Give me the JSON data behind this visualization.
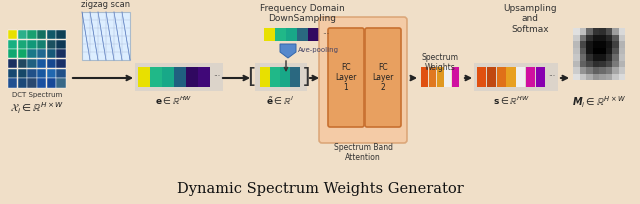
{
  "bg_color": "#f0dfc8",
  "title": "Dynamic Spectrum Weights Generator",
  "title_fontsize": 10.5,
  "dct_colors": [
    [
      "#e8e000",
      "#2bb08a",
      "#18a070",
      "#147060",
      "#105868",
      "#0d4055"
    ],
    [
      "#18b080",
      "#18a878",
      "#109878",
      "#148070",
      "#1a5060",
      "#0d3855"
    ],
    [
      "#10a870",
      "#10a868",
      "#1a7888",
      "#206890",
      "#165878",
      "#183060"
    ],
    [
      "#1a3060",
      "#204860",
      "#206080",
      "#1858a0",
      "#164890",
      "#183068"
    ],
    [
      "#164870",
      "#164868",
      "#205088",
      "#1858a0",
      "#2068b0",
      "#205088"
    ],
    [
      "#205090",
      "#1a4878",
      "#284870",
      "#1a50a0",
      "#164898",
      "#386888"
    ]
  ],
  "e_colors": [
    "#e8e000",
    "#20b888",
    "#18a888",
    "#206080",
    "#300860",
    "#400878"
  ],
  "et_colors": [
    "#e8e000",
    "#20b888",
    "#18a888",
    "#2a6880"
  ],
  "sw_colors": [
    "#e05010",
    "#e07820",
    "#e09820",
    "#f0f0f0",
    "#d010a0"
  ],
  "s2_colors": [
    "#e05010",
    "#c04810",
    "#e07018",
    "#e8a020",
    "#f0f0f0",
    "#d010a0",
    "#8800b0"
  ],
  "fc_face": "#e8a060",
  "fc_edge": "#c87030",
  "sba_face": "#f5c8a0",
  "sba_edge": "#d8a070",
  "gray_pattern": [
    [
      0.88,
      0.75,
      0.4,
      0.2,
      0.18,
      0.3,
      0.62,
      0.85
    ],
    [
      0.8,
      0.45,
      0.18,
      0.08,
      0.08,
      0.15,
      0.35,
      0.78
    ],
    [
      0.72,
      0.28,
      0.08,
      0.02,
      0.02,
      0.08,
      0.25,
      0.7
    ],
    [
      0.75,
      0.35,
      0.08,
      0.0,
      0.0,
      0.1,
      0.32,
      0.72
    ],
    [
      0.78,
      0.42,
      0.18,
      0.08,
      0.08,
      0.18,
      0.42,
      0.75
    ],
    [
      0.72,
      0.38,
      0.28,
      0.18,
      0.2,
      0.28,
      0.48,
      0.7
    ],
    [
      0.8,
      0.58,
      0.48,
      0.38,
      0.42,
      0.48,
      0.65,
      0.78
    ],
    [
      0.88,
      0.78,
      0.68,
      0.58,
      0.62,
      0.65,
      0.78,
      0.86
    ]
  ]
}
